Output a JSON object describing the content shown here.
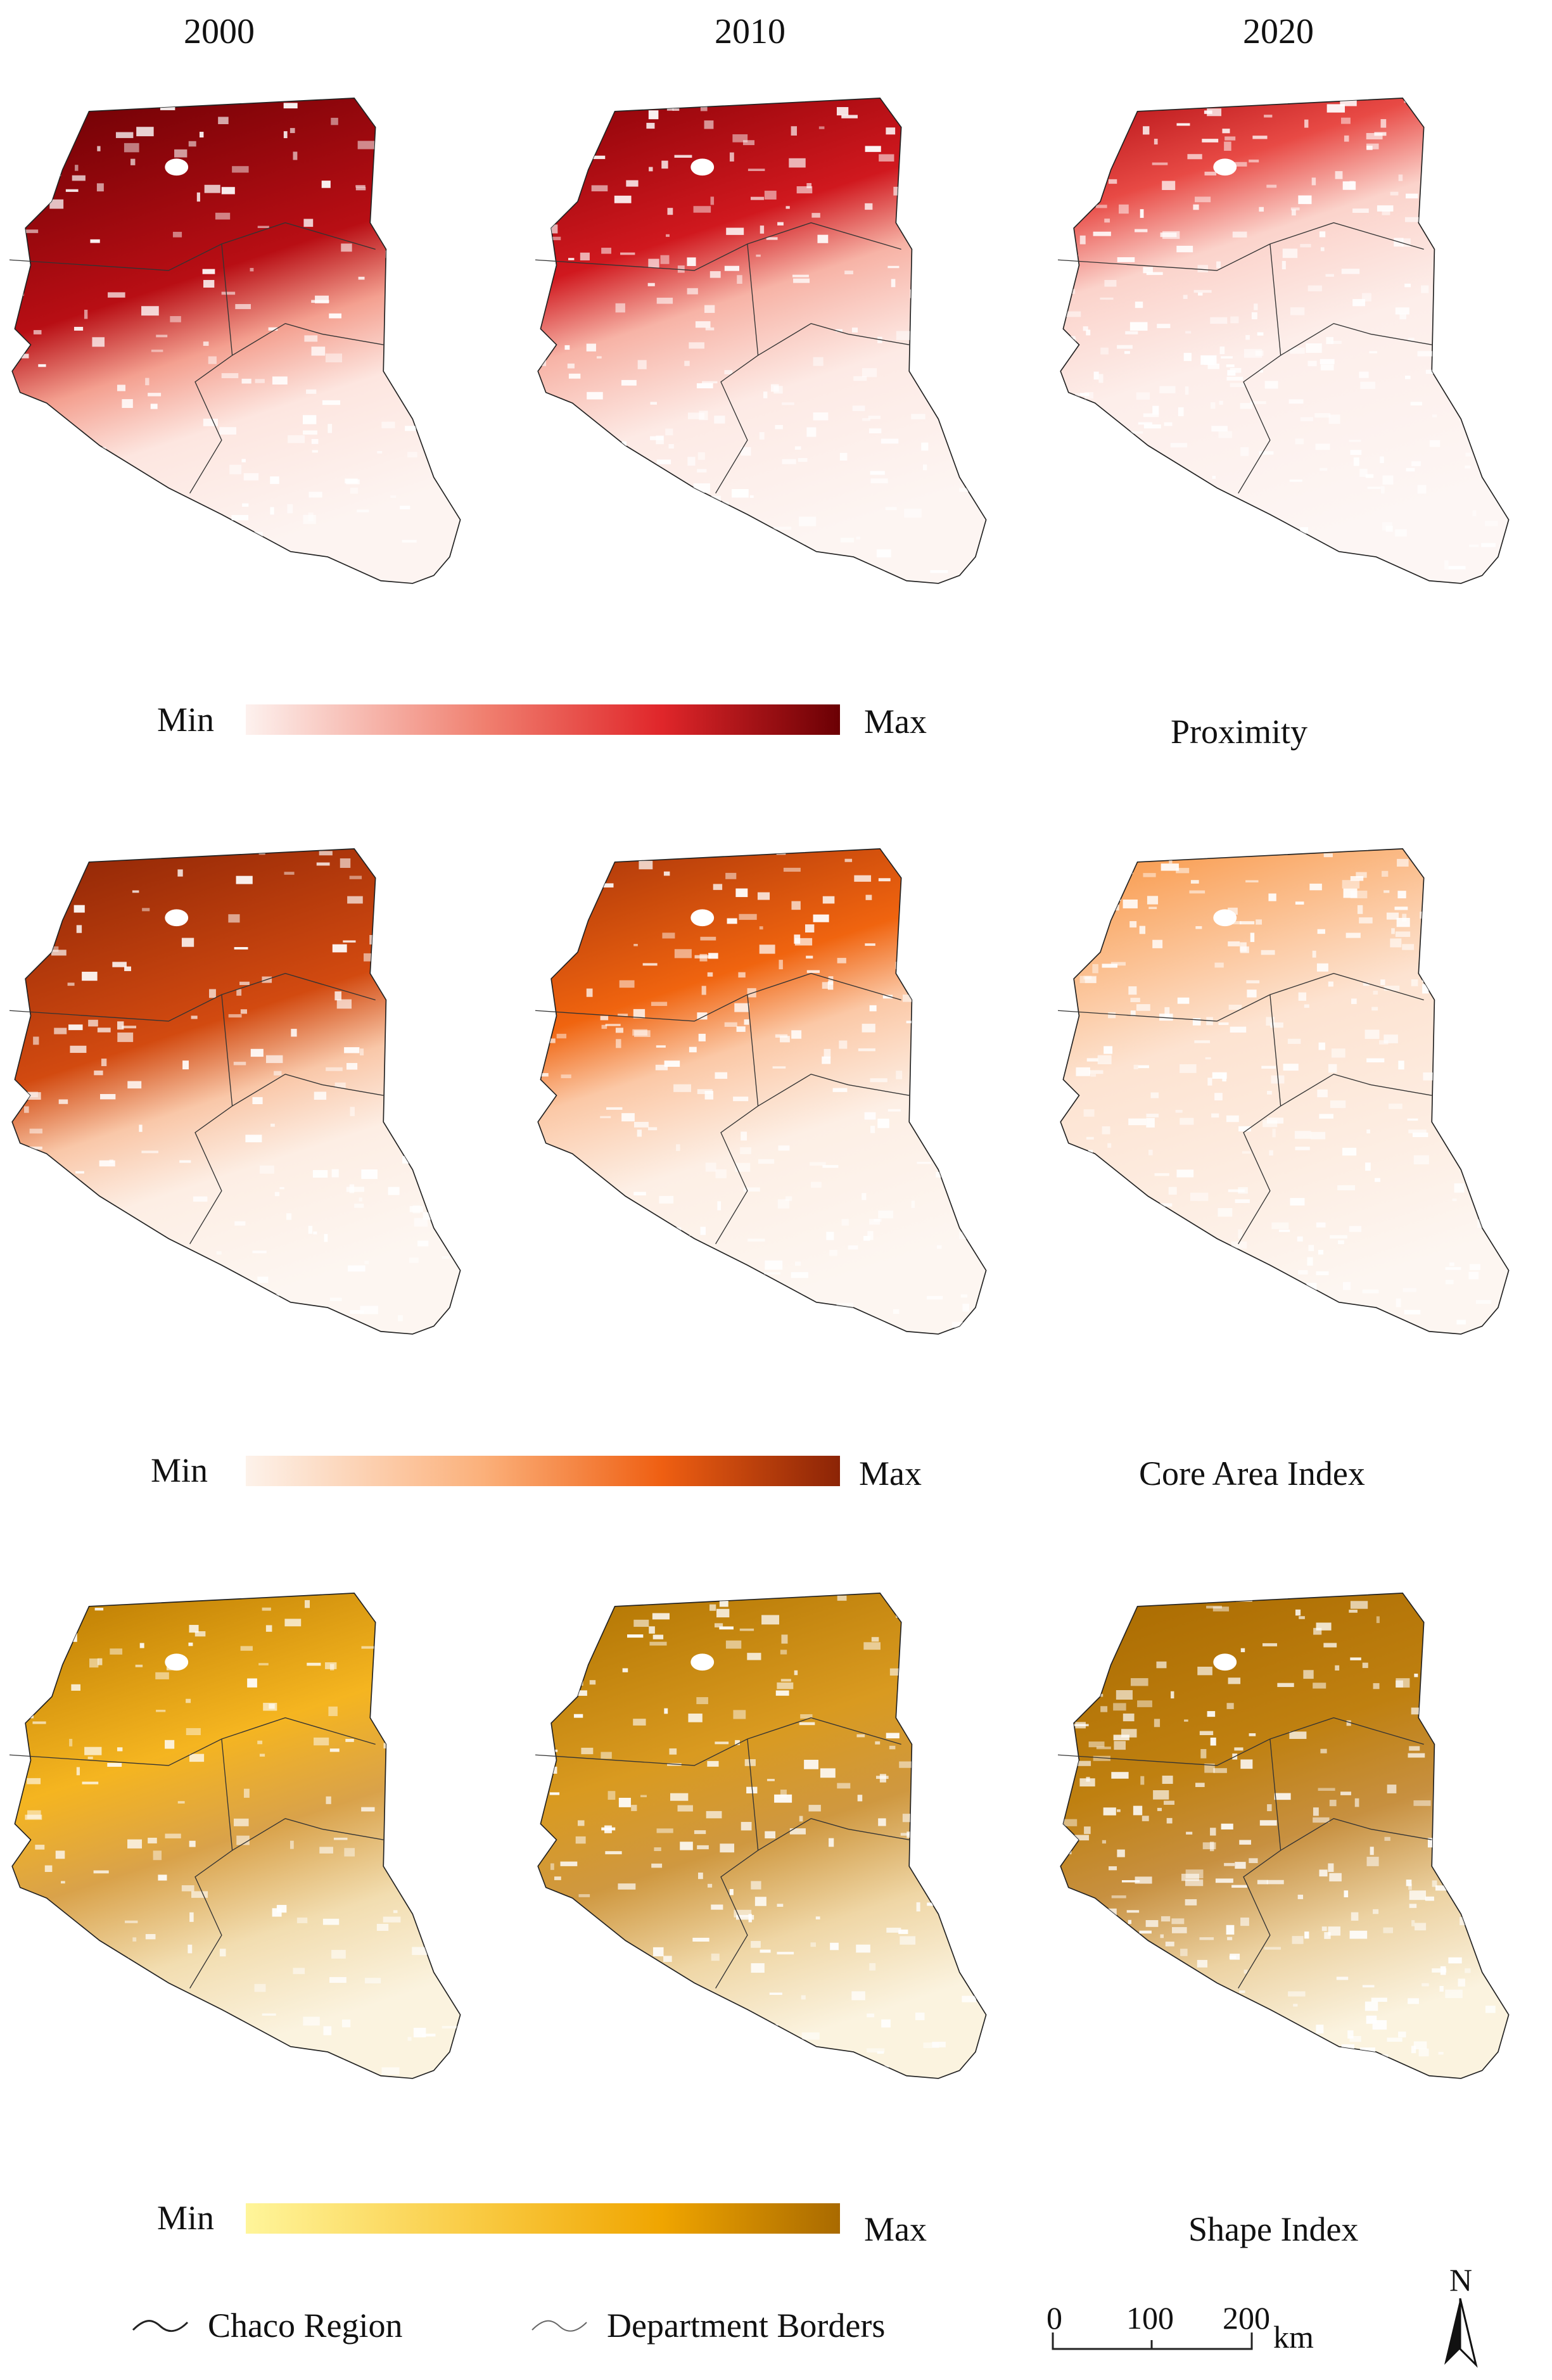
{
  "years": [
    "2000",
    "2010",
    "2020"
  ],
  "legend_min": "Min",
  "legend_max": "Max",
  "panels": [
    {
      "title": "Proximity",
      "colors": [
        "#fdf1ee",
        "#f08070",
        "#e0262a",
        "#6b0004"
      ]
    },
    {
      "title": "Core Area Index",
      "colors": [
        "#fdf2ea",
        "#fbb07a",
        "#ef5f12",
        "#8c2406"
      ]
    },
    {
      "title": "Shape Index",
      "colors": [
        "#fff59a",
        "#f9c940",
        "#f0a500",
        "#a96a00"
      ]
    }
  ],
  "legend": {
    "chaco_region": "Chaco Region",
    "department_borders": "Department Borders"
  },
  "scale_bar": {
    "ticks": [
      "0",
      "100",
      "200"
    ],
    "unit": "km"
  },
  "north_arrow": "N"
}
